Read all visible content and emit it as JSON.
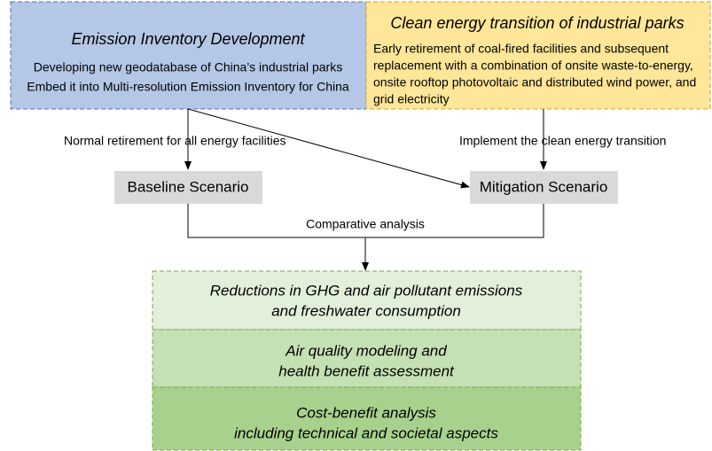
{
  "input_boxes": [
    {
      "title": "Emission Inventory Development",
      "lines": [
        "Developing new geodatabase of China’s industrial parks",
        "Embed it into Multi-resolution Emission Inventory for China"
      ]
    },
    {
      "title": "Clean energy transition of industrial parks",
      "lines": [
        "Early retirement of coal-fired facilities and subsequent",
        "replacement with a combination of onsite waste-to-energy,",
        "onsite rooftop photovoltaic and distributed wind power, and",
        "grid electricity"
      ]
    }
  ],
  "edge_labels": [
    "Normal retirement for all energy facilities",
    "Implement the clean energy transition"
  ],
  "scenarios": [
    "Baseline Scenario",
    "Mitigation Scenario"
  ],
  "comparison_label": "Comparative analysis",
  "outcomes": [
    {
      "lines": [
        "Reductions in GHG and air pollutant emissions",
        "and freshwater consumption"
      ]
    },
    {
      "lines": [
        "Air quality modeling and",
        "health benefit assessment"
      ]
    },
    {
      "lines": [
        "Cost-benefit analysis",
        "including technical and societal aspects"
      ]
    }
  ]
}
